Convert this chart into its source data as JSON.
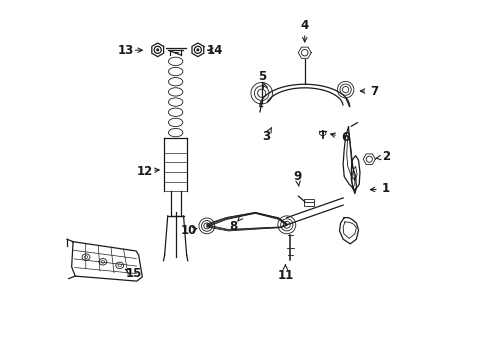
{
  "bg_color": "#ffffff",
  "line_color": "#1a1a1a",
  "lw": 0.9,
  "lw_thin": 0.6,
  "fontsize": 8.5,
  "labels": {
    "1": [
      0.895,
      0.475,
      0.828,
      0.472
    ],
    "2": [
      0.895,
      0.565,
      0.845,
      0.557
    ],
    "3": [
      0.562,
      0.622,
      0.582,
      0.658
    ],
    "4": [
      0.668,
      0.93,
      0.668,
      0.862
    ],
    "5": [
      0.548,
      0.79,
      0.557,
      0.76
    ],
    "6": [
      0.78,
      0.618,
      0.718,
      0.634
    ],
    "7": [
      0.862,
      0.748,
      0.8,
      0.748
    ],
    "8": [
      0.468,
      0.37,
      0.488,
      0.393
    ],
    "9": [
      0.648,
      0.51,
      0.654,
      0.462
    ],
    "10": [
      0.345,
      0.36,
      0.382,
      0.368
    ],
    "11": [
      0.614,
      0.235,
      0.614,
      0.278
    ],
    "12": [
      0.222,
      0.525,
      0.285,
      0.53
    ],
    "13": [
      0.168,
      0.862,
      0.238,
      0.862
    ],
    "14": [
      0.418,
      0.862,
      0.385,
      0.862
    ],
    "15": [
      0.192,
      0.238,
      0.155,
      0.258
    ]
  }
}
